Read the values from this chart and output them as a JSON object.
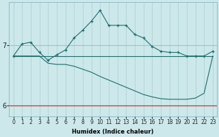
{
  "xlabel": "Humidex (Indice chaleur)",
  "bg_color": "#cce8ea",
  "grid_color_v": "#aacdd0",
  "grid_color_h": "#ee9999",
  "line_color": "#1a6b6b",
  "x_ticks": [
    0,
    1,
    2,
    3,
    4,
    5,
    6,
    7,
    8,
    9,
    10,
    11,
    12,
    13,
    14,
    15,
    16,
    17,
    18,
    19,
    20,
    21,
    22,
    23
  ],
  "y_ticks": [
    6,
    7
  ],
  "ylim": [
    5.82,
    7.72
  ],
  "xlim": [
    -0.5,
    23.5
  ],
  "curve_main_y": [
    6.82,
    7.02,
    7.05,
    6.88,
    6.75,
    6.84,
    6.92,
    7.12,
    7.25,
    7.4,
    7.58,
    7.33,
    7.33,
    7.33,
    7.18,
    7.12,
    6.98,
    6.9,
    6.88,
    6.88,
    6.82,
    6.82,
    6.82,
    6.9
  ],
  "curve_flat_y": [
    6.82,
    6.82,
    6.82,
    6.82,
    6.82,
    6.82,
    6.82,
    6.82,
    6.82,
    6.82,
    6.82,
    6.82,
    6.82,
    6.82,
    6.82,
    6.82,
    6.82,
    6.82,
    6.82,
    6.82,
    6.82,
    6.82,
    6.82,
    6.82
  ],
  "curve_desc_y": [
    6.82,
    6.82,
    6.82,
    6.82,
    6.7,
    6.68,
    6.68,
    6.65,
    6.6,
    6.55,
    6.48,
    6.42,
    6.36,
    6.3,
    6.24,
    6.18,
    6.14,
    6.11,
    6.1,
    6.1,
    6.1,
    6.12,
    6.2,
    6.82
  ],
  "red_line_y": 6.0,
  "red_line_color": "#cc3333",
  "xlabel_fontsize": 6,
  "tick_fontsize": 5.5,
  "ytick_fontsize": 7
}
